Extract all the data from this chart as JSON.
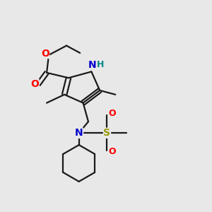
{
  "bg_color": "#e8e8e8",
  "bond_color": "#1a1a1a",
  "bond_width": 1.6,
  "atom_colors": {
    "O": "#ff0000",
    "N": "#0000cc",
    "S": "#999900",
    "H": "#008888",
    "C": "#1a1a1a"
  }
}
